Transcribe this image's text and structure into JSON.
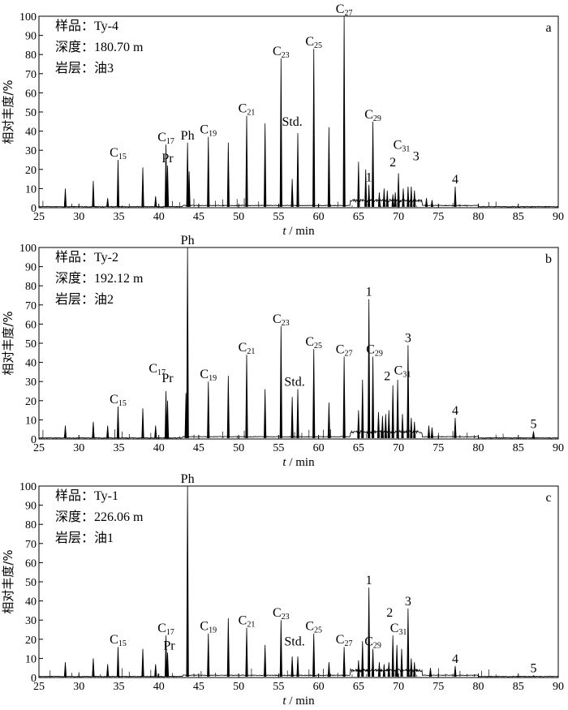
{
  "chart_data": [
    {
      "type": "line",
      "panel_letter": "a",
      "info": {
        "sample": "样品：Ty-4",
        "depth": "深度：180.70 m",
        "layer": "岩层：油3"
      },
      "xlabel": "t / min",
      "ylabel": "相对丰度/%",
      "xlim": [
        25,
        90
      ],
      "ylim": [
        0,
        100
      ],
      "xticks": [
        25,
        30,
        35,
        40,
        45,
        50,
        55,
        60,
        65,
        70,
        75,
        80,
        85,
        90
      ],
      "yticks": [
        0,
        10,
        20,
        30,
        40,
        50,
        60,
        70,
        80,
        90,
        100
      ],
      "peaks": [
        {
          "x": 28.3,
          "y": 10
        },
        {
          "x": 31.8,
          "y": 14
        },
        {
          "x": 33.6,
          "y": 5
        },
        {
          "x": 34.9,
          "y": 25
        },
        {
          "x": 38.0,
          "y": 21
        },
        {
          "x": 39.6,
          "y": 6
        },
        {
          "x": 40.9,
          "y": 33
        },
        {
          "x": 41.1,
          "y": 22
        },
        {
          "x": 43.6,
          "y": 34
        },
        {
          "x": 43.8,
          "y": 19
        },
        {
          "x": 46.2,
          "y": 37
        },
        {
          "x": 48.7,
          "y": 34
        },
        {
          "x": 51.0,
          "y": 48
        },
        {
          "x": 53.3,
          "y": 44
        },
        {
          "x": 55.3,
          "y": 78
        },
        {
          "x": 56.7,
          "y": 15
        },
        {
          "x": 57.4,
          "y": 39
        },
        {
          "x": 59.4,
          "y": 83
        },
        {
          "x": 61.3,
          "y": 42
        },
        {
          "x": 63.2,
          "y": 100
        },
        {
          "x": 65.0,
          "y": 24
        },
        {
          "x": 65.9,
          "y": 20
        },
        {
          "x": 66.3,
          "y": 12
        },
        {
          "x": 66.8,
          "y": 45
        },
        {
          "x": 67.6,
          "y": 8
        },
        {
          "x": 68.2,
          "y": 10
        },
        {
          "x": 68.6,
          "y": 9
        },
        {
          "x": 69.3,
          "y": 7
        },
        {
          "x": 69.6,
          "y": 8
        },
        {
          "x": 70.0,
          "y": 18
        },
        {
          "x": 70.6,
          "y": 10
        },
        {
          "x": 71.2,
          "y": 11
        },
        {
          "x": 71.6,
          "y": 11
        },
        {
          "x": 72.0,
          "y": 9
        },
        {
          "x": 73.5,
          "y": 5
        },
        {
          "x": 74.2,
          "y": 4
        },
        {
          "x": 77.1,
          "y": 11
        }
      ],
      "annotations": [
        {
          "text": "C",
          "sub": "15",
          "x": 34.9,
          "y": 25
        },
        {
          "text": "C",
          "sub": "17",
          "x": 40.9,
          "y": 33
        },
        {
          "text": "Pr",
          "x": 41.1,
          "y": 22
        },
        {
          "text": "Ph",
          "x": 43.6,
          "y": 34
        },
        {
          "text": "C",
          "sub": "19",
          "x": 46.2,
          "y": 37
        },
        {
          "text": "C",
          "sub": "21",
          "x": 51.0,
          "y": 48
        },
        {
          "text": "C",
          "sub": "23",
          "x": 55.3,
          "y": 78
        },
        {
          "text": "Std.",
          "x": 56.7,
          "y": 41
        },
        {
          "text": "C",
          "sub": "25",
          "x": 59.4,
          "y": 83
        },
        {
          "text": "C",
          "sub": "27",
          "x": 63.2,
          "y": 100
        },
        {
          "text": "C",
          "sub": "29",
          "x": 66.8,
          "y": 45
        },
        {
          "text": "1",
          "x": 66.3,
          "y": 12
        },
        {
          "text": "2",
          "x": 69.3,
          "y": 20
        },
        {
          "text": "C",
          "sub": "31",
          "x": 70.4,
          "y": 29
        },
        {
          "text": "3",
          "x": 72.2,
          "y": 23
        },
        {
          "text": "4",
          "x": 77.1,
          "y": 11
        }
      ]
    },
    {
      "type": "line",
      "panel_letter": "b",
      "info": {
        "sample": "样品：Ty-2",
        "depth": "深度：192.12 m",
        "layer": "岩层：油2"
      },
      "xlabel": "t / min",
      "ylabel": "相对丰度/%",
      "xlim": [
        25,
        90
      ],
      "ylim": [
        0,
        100
      ],
      "xticks": [
        25,
        30,
        35,
        40,
        45,
        50,
        55,
        60,
        65,
        70,
        75,
        80,
        85,
        90
      ],
      "yticks": [
        0,
        10,
        20,
        30,
        40,
        50,
        60,
        70,
        80,
        90,
        100
      ],
      "peaks": [
        {
          "x": 28.3,
          "y": 7
        },
        {
          "x": 31.8,
          "y": 9
        },
        {
          "x": 33.6,
          "y": 7
        },
        {
          "x": 34.9,
          "y": 17
        },
        {
          "x": 38.0,
          "y": 16
        },
        {
          "x": 39.6,
          "y": 7
        },
        {
          "x": 40.9,
          "y": 25
        },
        {
          "x": 41.1,
          "y": 20
        },
        {
          "x": 43.4,
          "y": 24
        },
        {
          "x": 43.6,
          "y": 100
        },
        {
          "x": 46.2,
          "y": 30
        },
        {
          "x": 48.7,
          "y": 33
        },
        {
          "x": 51.0,
          "y": 44
        },
        {
          "x": 53.3,
          "y": 26
        },
        {
          "x": 55.3,
          "y": 59
        },
        {
          "x": 56.7,
          "y": 22
        },
        {
          "x": 57.4,
          "y": 26
        },
        {
          "x": 59.4,
          "y": 47
        },
        {
          "x": 61.3,
          "y": 19
        },
        {
          "x": 63.2,
          "y": 43
        },
        {
          "x": 65.0,
          "y": 15
        },
        {
          "x": 65.5,
          "y": 31
        },
        {
          "x": 66.3,
          "y": 73
        },
        {
          "x": 66.8,
          "y": 43
        },
        {
          "x": 67.5,
          "y": 14
        },
        {
          "x": 68.0,
          "y": 12
        },
        {
          "x": 68.4,
          "y": 13
        },
        {
          "x": 68.8,
          "y": 15
        },
        {
          "x": 69.3,
          "y": 28
        },
        {
          "x": 69.9,
          "y": 31
        },
        {
          "x": 70.5,
          "y": 13
        },
        {
          "x": 71.2,
          "y": 49
        },
        {
          "x": 71.6,
          "y": 11
        },
        {
          "x": 72.0,
          "y": 9
        },
        {
          "x": 73.8,
          "y": 7
        },
        {
          "x": 74.2,
          "y": 6
        },
        {
          "x": 77.1,
          "y": 11
        },
        {
          "x": 86.9,
          "y": 4
        }
      ],
      "annotations": [
        {
          "text": "C",
          "sub": "15",
          "x": 34.9,
          "y": 17
        },
        {
          "text": "C",
          "sub": "17",
          "x": 39.8,
          "y": 33
        },
        {
          "text": "Pr",
          "x": 41.1,
          "y": 28
        },
        {
          "text": "Ph",
          "x": 43.6,
          "y": 100
        },
        {
          "text": "C",
          "sub": "19",
          "x": 46.2,
          "y": 30
        },
        {
          "text": "C",
          "sub": "21",
          "x": 51.0,
          "y": 44
        },
        {
          "text": "C",
          "sub": "23",
          "x": 55.3,
          "y": 59
        },
        {
          "text": "Std.",
          "x": 57.0,
          "y": 26
        },
        {
          "text": "C",
          "sub": "25",
          "x": 59.4,
          "y": 47
        },
        {
          "text": "C",
          "sub": "27",
          "x": 63.2,
          "y": 43
        },
        {
          "text": "1",
          "x": 66.3,
          "y": 73
        },
        {
          "text": "C",
          "sub": "29",
          "x": 67.0,
          "y": 43
        },
        {
          "text": "2",
          "x": 68.6,
          "y": 29
        },
        {
          "text": "C",
          "sub": "31",
          "x": 70.5,
          "y": 32
        },
        {
          "text": "3",
          "x": 71.2,
          "y": 49
        },
        {
          "text": "4",
          "x": 77.1,
          "y": 11
        },
        {
          "text": "5",
          "x": 86.9,
          "y": 4
        }
      ]
    },
    {
      "type": "line",
      "panel_letter": "c",
      "info": {
        "sample": "样品：Ty-1",
        "depth": "深度：226.06 m",
        "layer": "岩层：油1"
      },
      "xlabel": "t / min",
      "ylabel": "相对丰度/%",
      "xlim": [
        25,
        90
      ],
      "ylim": [
        0,
        100
      ],
      "xticks": [
        25,
        30,
        35,
        40,
        45,
        50,
        55,
        60,
        65,
        70,
        75,
        80,
        85,
        90
      ],
      "yticks": [
        0,
        10,
        20,
        30,
        40,
        50,
        60,
        70,
        80,
        90,
        100
      ],
      "peaks": [
        {
          "x": 28.3,
          "y": 8
        },
        {
          "x": 31.8,
          "y": 10
        },
        {
          "x": 33.6,
          "y": 7
        },
        {
          "x": 34.9,
          "y": 16
        },
        {
          "x": 38.0,
          "y": 15
        },
        {
          "x": 39.6,
          "y": 7
        },
        {
          "x": 40.9,
          "y": 22
        },
        {
          "x": 41.1,
          "y": 13
        },
        {
          "x": 43.6,
          "y": 100
        },
        {
          "x": 46.2,
          "y": 23
        },
        {
          "x": 48.7,
          "y": 31
        },
        {
          "x": 51.0,
          "y": 26
        },
        {
          "x": 53.3,
          "y": 17
        },
        {
          "x": 55.3,
          "y": 30
        },
        {
          "x": 56.7,
          "y": 11
        },
        {
          "x": 57.4,
          "y": 11
        },
        {
          "x": 59.4,
          "y": 23
        },
        {
          "x": 61.3,
          "y": 8
        },
        {
          "x": 63.2,
          "y": 16
        },
        {
          "x": 65.0,
          "y": 9
        },
        {
          "x": 65.5,
          "y": 19
        },
        {
          "x": 66.3,
          "y": 47
        },
        {
          "x": 66.8,
          "y": 15
        },
        {
          "x": 67.6,
          "y": 8
        },
        {
          "x": 68.2,
          "y": 7
        },
        {
          "x": 68.8,
          "y": 8
        },
        {
          "x": 69.3,
          "y": 22
        },
        {
          "x": 69.8,
          "y": 17
        },
        {
          "x": 70.4,
          "y": 15
        },
        {
          "x": 71.2,
          "y": 36
        },
        {
          "x": 71.6,
          "y": 10
        },
        {
          "x": 72.0,
          "y": 8
        },
        {
          "x": 74.0,
          "y": 5
        },
        {
          "x": 77.1,
          "y": 6
        },
        {
          "x": 86.9,
          "y": 1
        }
      ],
      "annotations": [
        {
          "text": "C",
          "sub": "15",
          "x": 34.9,
          "y": 16
        },
        {
          "text": "C",
          "sub": "17",
          "x": 40.9,
          "y": 22
        },
        {
          "text": "Pr",
          "x": 41.3,
          "y": 13
        },
        {
          "text": "Ph",
          "x": 43.6,
          "y": 100
        },
        {
          "text": "C",
          "sub": "19",
          "x": 46.2,
          "y": 23
        },
        {
          "text": "C",
          "sub": "21",
          "x": 51.0,
          "y": 26
        },
        {
          "text": "C",
          "sub": "23",
          "x": 55.3,
          "y": 30
        },
        {
          "text": "Std.",
          "x": 57.0,
          "y": 15
        },
        {
          "text": "C",
          "sub": "25",
          "x": 59.4,
          "y": 23
        },
        {
          "text": "C",
          "sub": "27",
          "x": 63.2,
          "y": 16
        },
        {
          "text": "1",
          "x": 66.3,
          "y": 47
        },
        {
          "text": "C",
          "sub": "29",
          "x": 66.8,
          "y": 15
        },
        {
          "text": "2",
          "x": 68.9,
          "y": 30
        },
        {
          "text": "C",
          "sub": "31",
          "x": 70.0,
          "y": 22
        },
        {
          "text": "3",
          "x": 71.2,
          "y": 36
        },
        {
          "text": "4",
          "x": 77.1,
          "y": 6
        },
        {
          "text": "5",
          "x": 86.9,
          "y": 1
        }
      ]
    }
  ]
}
